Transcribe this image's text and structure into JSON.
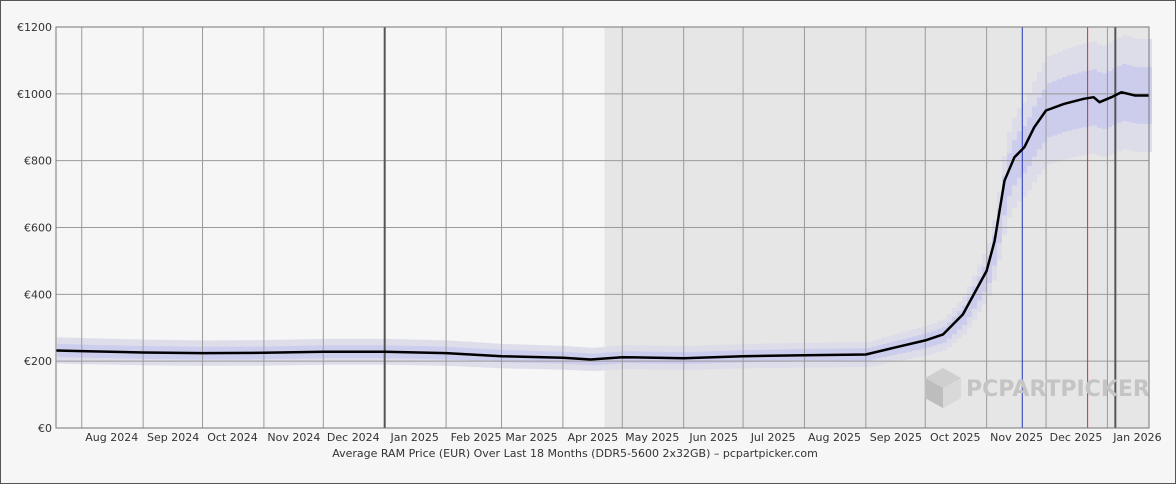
{
  "chart_data": {
    "type": "line",
    "title": "Average RAM Price (EUR) Over Last 18 Months (DDR5-5600 2x32GB) – pcpartpicker.com",
    "xlabel": "",
    "ylabel": "",
    "ylim": [
      0,
      1200
    ],
    "xlim": [
      "2024-07-19",
      "2026-01-22"
    ],
    "grid": true,
    "legend": "none",
    "y_ticks": [
      "€0",
      "€200",
      "€400",
      "€600",
      "€800",
      "€1000",
      "€1200"
    ],
    "y_tick_values": [
      0,
      200,
      400,
      600,
      800,
      1000,
      1200
    ],
    "x_ticks": [
      "Aug 2024",
      "Sep 2024",
      "Oct 2024",
      "Nov 2024",
      "Dec 2024",
      "Jan 2025",
      "Feb 2025",
      "Mar 2025",
      "Apr 2025",
      "May 2025",
      "Jun 2025",
      "Jul 2025",
      "Aug 2025",
      "Sep 2025",
      "Oct 2025",
      "Nov 2025",
      "Dec 2025",
      "Jan 2026"
    ],
    "x_tick_dates": [
      "2024-08-01",
      "2024-09-01",
      "2024-10-01",
      "2024-11-01",
      "2024-12-01",
      "2025-01-01",
      "2025-02-01",
      "2025-03-01",
      "2025-04-01",
      "2025-05-01",
      "2025-06-01",
      "2025-07-01",
      "2025-08-01",
      "2025-09-01",
      "2025-10-01",
      "2025-11-01",
      "2025-12-01",
      "2026-01-01"
    ],
    "series": [
      {
        "color": "#000000",
        "x": [
          "2024-07-19",
          "2024-08-01",
          "2024-09-01",
          "2024-10-01",
          "2024-11-01",
          "2024-12-01",
          "2025-01-01",
          "2025-02-01",
          "2025-03-01",
          "2025-04-01",
          "2025-04-15",
          "2025-05-01",
          "2025-06-01",
          "2025-07-01",
          "2025-08-01",
          "2025-09-01",
          "2025-09-15",
          "2025-10-01",
          "2025-10-10",
          "2025-10-20",
          "2025-11-01",
          "2025-11-05",
          "2025-11-10",
          "2025-11-15",
          "2025-11-20",
          "2025-11-25",
          "2025-12-01",
          "2025-12-10",
          "2025-12-20",
          "2025-12-25",
          "2025-12-28",
          "2026-01-03",
          "2026-01-08",
          "2026-01-15",
          "2026-01-22"
        ],
        "values": [
          232,
          230,
          226,
          224,
          225,
          228,
          228,
          224,
          215,
          210,
          205,
          212,
          209,
          215,
          218,
          220,
          240,
          262,
          280,
          340,
          470,
          560,
          740,
          810,
          840,
          900,
          950,
          970,
          985,
          990,
          975,
          990,
          1005,
          995,
          995
        ]
      }
    ],
    "reference_lines": [
      {
        "date": "2025-01-01",
        "color": "#555555"
      },
      {
        "date": "2025-11-19",
        "color": "#2233bb"
      },
      {
        "date": "2025-12-22",
        "color": "#ee2222"
      },
      {
        "date": "2026-01-05",
        "color": "#555555"
      }
    ],
    "shaded_range": {
      "start": "2025-04-22",
      "end": "2026-01-22",
      "color": "#e6e6e6"
    },
    "watermark": "PCPARTPICKER"
  }
}
